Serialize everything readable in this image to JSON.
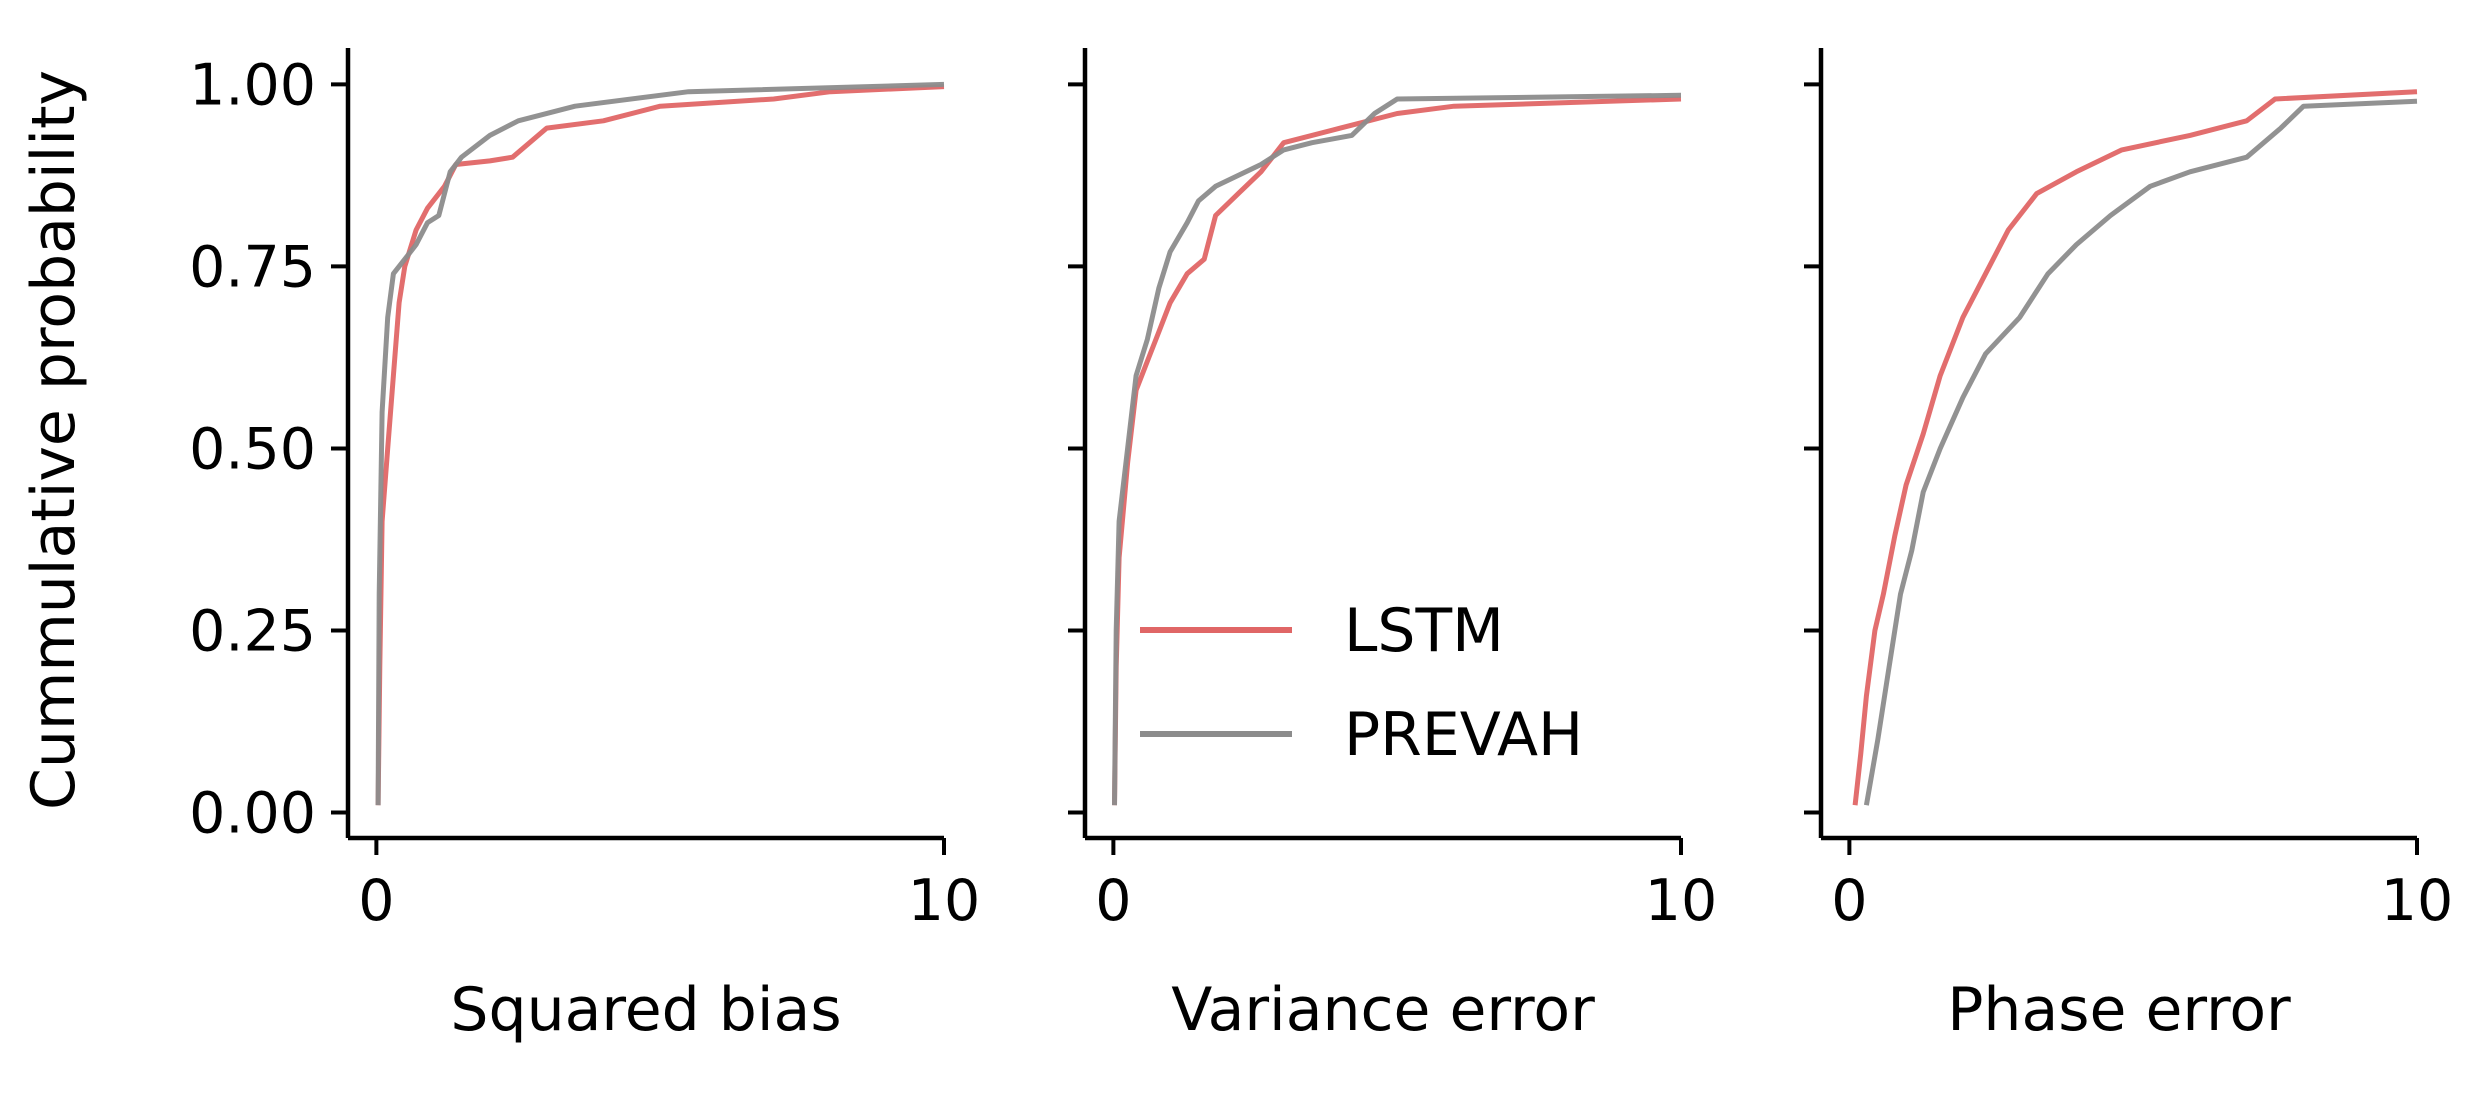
{
  "figure": {
    "ylabel": "Cummulative probability",
    "yticks": [
      {
        "value": 0.0,
        "label": "0.00"
      },
      {
        "value": 0.25,
        "label": "0.25"
      },
      {
        "value": 0.5,
        "label": "0.50"
      },
      {
        "value": 0.75,
        "label": "0.75"
      },
      {
        "value": 1.0,
        "label": "1.00"
      }
    ],
    "legend": {
      "placement": "lower-right of middle panel",
      "entries": [
        {
          "name": "LSTM",
          "color": "#e06666"
        },
        {
          "name": "PREVAH",
          "color": "#8c8c8c"
        }
      ]
    }
  },
  "chart_data": [
    {
      "type": "line",
      "xlabel": "Squared bias",
      "ylabel": "Cummulative probability",
      "xlim": [
        -0.5,
        10
      ],
      "ylim": [
        -0.035,
        1.05
      ],
      "xticks": [
        {
          "value": 0,
          "label": "0"
        },
        {
          "value": 10,
          "label": "10"
        }
      ],
      "grid": false,
      "series": [
        {
          "name": "LSTM",
          "color": "#e06666",
          "points": [
            [
              0.03,
              0.01
            ],
            [
              0.06,
              0.2
            ],
            [
              0.1,
              0.4
            ],
            [
              0.2,
              0.5
            ],
            [
              0.3,
              0.6
            ],
            [
              0.4,
              0.7
            ],
            [
              0.5,
              0.75
            ],
            [
              0.7,
              0.8
            ],
            [
              0.9,
              0.83
            ],
            [
              1.2,
              0.86
            ],
            [
              1.4,
              0.89
            ],
            [
              2.0,
              0.895
            ],
            [
              2.4,
              0.9
            ],
            [
              3.0,
              0.94
            ],
            [
              4.0,
              0.95
            ],
            [
              5.0,
              0.97
            ],
            [
              7.0,
              0.98
            ],
            [
              8.0,
              0.99
            ],
            [
              10.0,
              0.997
            ]
          ]
        },
        {
          "name": "PREVAH",
          "color": "#8c8c8c",
          "points": [
            [
              0.03,
              0.01
            ],
            [
              0.05,
              0.3
            ],
            [
              0.1,
              0.55
            ],
            [
              0.2,
              0.68
            ],
            [
              0.3,
              0.74
            ],
            [
              0.5,
              0.76
            ],
            [
              0.7,
              0.78
            ],
            [
              0.9,
              0.81
            ],
            [
              1.1,
              0.82
            ],
            [
              1.3,
              0.88
            ],
            [
              1.5,
              0.9
            ],
            [
              2.0,
              0.93
            ],
            [
              2.5,
              0.95
            ],
            [
              3.5,
              0.97
            ],
            [
              5.5,
              0.99
            ],
            [
              10.0,
              1.0
            ]
          ]
        }
      ]
    },
    {
      "type": "line",
      "xlabel": "Variance error",
      "ylabel": "",
      "xlim": [
        -0.5,
        10
      ],
      "ylim": [
        -0.035,
        1.05
      ],
      "xticks": [
        {
          "value": 0,
          "label": "0"
        },
        {
          "value": 10,
          "label": "10"
        }
      ],
      "grid": false,
      "series": [
        {
          "name": "LSTM",
          "color": "#e06666",
          "points": [
            [
              0.02,
              0.01
            ],
            [
              0.05,
              0.2
            ],
            [
              0.1,
              0.35
            ],
            [
              0.25,
              0.48
            ],
            [
              0.4,
              0.58
            ],
            [
              0.6,
              0.62
            ],
            [
              0.8,
              0.66
            ],
            [
              1.0,
              0.7
            ],
            [
              1.3,
              0.74
            ],
            [
              1.6,
              0.76
            ],
            [
              1.8,
              0.82
            ],
            [
              2.2,
              0.85
            ],
            [
              2.6,
              0.88
            ],
            [
              3.0,
              0.92
            ],
            [
              4.0,
              0.94
            ],
            [
              5.0,
              0.96
            ],
            [
              6.0,
              0.97
            ],
            [
              10.0,
              0.98
            ]
          ]
        },
        {
          "name": "PREVAH",
          "color": "#8c8c8c",
          "points": [
            [
              0.02,
              0.01
            ],
            [
              0.05,
              0.25
            ],
            [
              0.1,
              0.4
            ],
            [
              0.25,
              0.5
            ],
            [
              0.4,
              0.6
            ],
            [
              0.6,
              0.65
            ],
            [
              0.8,
              0.72
            ],
            [
              1.0,
              0.77
            ],
            [
              1.3,
              0.81
            ],
            [
              1.5,
              0.84
            ],
            [
              1.8,
              0.86
            ],
            [
              2.2,
              0.875
            ],
            [
              2.6,
              0.89
            ],
            [
              3.0,
              0.91
            ],
            [
              3.5,
              0.92
            ],
            [
              4.2,
              0.93
            ],
            [
              4.6,
              0.96
            ],
            [
              5.0,
              0.98
            ],
            [
              10.0,
              0.985
            ]
          ]
        }
      ]
    },
    {
      "type": "line",
      "xlabel": "Phase error",
      "ylabel": "",
      "xlim": [
        -0.5,
        10
      ],
      "ylim": [
        -0.035,
        1.05
      ],
      "xticks": [
        {
          "value": 0,
          "label": "0"
        },
        {
          "value": 10,
          "label": "10"
        }
      ],
      "grid": false,
      "series": [
        {
          "name": "LSTM",
          "color": "#e06666",
          "points": [
            [
              0.1,
              0.01
            ],
            [
              0.2,
              0.08
            ],
            [
              0.3,
              0.16
            ],
            [
              0.45,
              0.25
            ],
            [
              0.6,
              0.3
            ],
            [
              0.8,
              0.38
            ],
            [
              1.0,
              0.45
            ],
            [
              1.3,
              0.52
            ],
            [
              1.6,
              0.6
            ],
            [
              2.0,
              0.68
            ],
            [
              2.4,
              0.74
            ],
            [
              2.8,
              0.8
            ],
            [
              3.3,
              0.85
            ],
            [
              4.0,
              0.88
            ],
            [
              4.8,
              0.91
            ],
            [
              6.0,
              0.93
            ],
            [
              7.0,
              0.95
            ],
            [
              7.5,
              0.98
            ],
            [
              10.0,
              0.99
            ]
          ]
        },
        {
          "name": "PREVAH",
          "color": "#8c8c8c",
          "points": [
            [
              0.3,
              0.01
            ],
            [
              0.5,
              0.1
            ],
            [
              0.7,
              0.2
            ],
            [
              0.9,
              0.3
            ],
            [
              1.1,
              0.36
            ],
            [
              1.3,
              0.44
            ],
            [
              1.6,
              0.5
            ],
            [
              2.0,
              0.57
            ],
            [
              2.4,
              0.63
            ],
            [
              3.0,
              0.68
            ],
            [
              3.5,
              0.74
            ],
            [
              4.0,
              0.78
            ],
            [
              4.6,
              0.82
            ],
            [
              5.3,
              0.86
            ],
            [
              6.0,
              0.88
            ],
            [
              7.0,
              0.9
            ],
            [
              7.6,
              0.94
            ],
            [
              8.0,
              0.97
            ],
            [
              10.0,
              0.977
            ]
          ]
        }
      ]
    }
  ]
}
